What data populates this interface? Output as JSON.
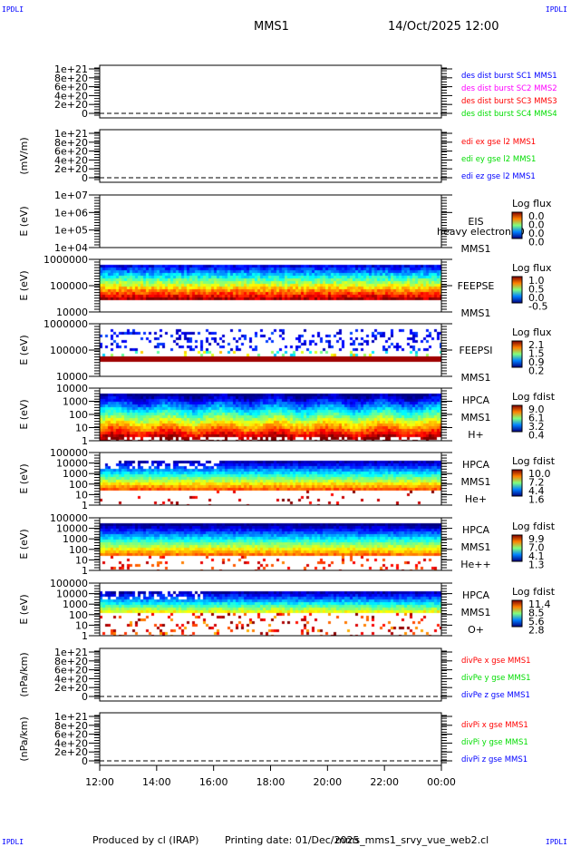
{
  "corners": {
    "tl": "IPDLI",
    "tr": "IPDLI",
    "bl": "IPDLI",
    "br": "IPDLI"
  },
  "header": {
    "spacecraft": "MMS1",
    "datetime": "14/Oct/2025 12:00"
  },
  "footer": {
    "produced": "Produced by cl (IRAP)",
    "printing": "Printing date: 01/Dec/2025",
    "script": "mms_mms1_srvy_vue_web2.cl"
  },
  "colors": {
    "blue": "#0000ff",
    "magenta": "#ff00ff",
    "red": "#ff0000",
    "green": "#00dd00"
  },
  "chart_data": {
    "type": "heatmap",
    "x_ticks": [
      "12:00",
      "14:00",
      "16:00",
      "18:00",
      "20:00",
      "22:00",
      "00:00"
    ],
    "panels": [
      {
        "type": "line",
        "ylabel": "",
        "yticks": [
          "1e+21",
          "8e+20",
          "6e+20",
          "4e+20",
          "2e+20",
          "0"
        ],
        "ylim": [
          0,
          1e+21
        ],
        "legend": [
          {
            "text": "des dist burst SC1 MMS1",
            "color": "#0000ff"
          },
          {
            "text": "des dist burst SC2 MMS2",
            "color": "#ff00ff"
          },
          {
            "text": "des dist burst SC3 MMS3",
            "color": "#ff0000"
          },
          {
            "text": "des dist burst SC4 MMS4",
            "color": "#00dd00"
          }
        ]
      },
      {
        "type": "line",
        "ylabel": "(mV/m)",
        "yticks": [
          "1e+21",
          "8e+20",
          "6e+20",
          "4e+20",
          "2e+20",
          "0"
        ],
        "ylim": [
          0,
          1e+21
        ],
        "legend": [
          {
            "text": "edi ex gse l2 MMS1",
            "color": "#ff0000"
          },
          {
            "text": "edi ey gse l2 MMS1",
            "color": "#00dd00"
          },
          {
            "text": "edi ez gse l2 MMS1",
            "color": "#0000ff"
          }
        ]
      },
      {
        "type": "heatmap",
        "ylabel": "E (eV)",
        "yticks": [
          "1e+07",
          "1e+06",
          "1e+05",
          "1e+04"
        ],
        "instrument": "EIS",
        "extra": "heavy electron t0",
        "sc": "MMS1",
        "species": "",
        "cbar_title": "Log flux",
        "cbar": [
          "0.0",
          "0.0",
          "0.0",
          "0.0"
        ]
      },
      {
        "type": "heatmap",
        "ylabel": "E (eV)",
        "yticks": [
          "1000000",
          "100000",
          "10000"
        ],
        "instrument": "FEEPSE",
        "sc": "MMS1",
        "species": "",
        "cbar_title": "Log flux",
        "cbar": [
          "1.0",
          "0.5",
          "0.0",
          "-0.5"
        ]
      },
      {
        "type": "heatmap",
        "ylabel": "E (eV)",
        "yticks": [
          "1000000",
          "100000",
          "10000"
        ],
        "instrument": "FEEPSI",
        "sc": "MMS1",
        "species": "",
        "cbar_title": "Log flux",
        "cbar": [
          "2.1",
          "1.5",
          "0.9",
          "0.2"
        ]
      },
      {
        "type": "heatmap",
        "ylabel": "E (eV)",
        "yticks": [
          "10000",
          "1000",
          "100",
          "10",
          "1"
        ],
        "instrument": "HPCA",
        "sc": "MMS1",
        "species": "H+",
        "cbar_title": "Log fdist",
        "cbar": [
          "9.0",
          "6.1",
          "3.2",
          "0.4"
        ]
      },
      {
        "type": "heatmap",
        "ylabel": "E (eV)",
        "yticks": [
          "100000",
          "10000",
          "1000",
          "100",
          "10",
          "1"
        ],
        "instrument": "HPCA",
        "sc": "MMS1",
        "species": "He+",
        "cbar_title": "Log fdist",
        "cbar": [
          "10.0",
          "7.2",
          "4.4",
          "1.6"
        ]
      },
      {
        "type": "heatmap",
        "ylabel": "E (eV)",
        "yticks": [
          "100000",
          "10000",
          "1000",
          "100",
          "10",
          "1"
        ],
        "instrument": "HPCA",
        "sc": "MMS1",
        "species": "He++",
        "cbar_title": "Log fdist",
        "cbar": [
          "9.9",
          "7.0",
          "4.1",
          "1.3"
        ]
      },
      {
        "type": "heatmap",
        "ylabel": "E (eV)",
        "yticks": [
          "100000",
          "10000",
          "1000",
          "100",
          "10",
          "1"
        ],
        "instrument": "HPCA",
        "sc": "MMS1",
        "species": "O+",
        "cbar_title": "Log fdist",
        "cbar": [
          "11.4",
          "8.5",
          "5.6",
          "2.8"
        ]
      },
      {
        "type": "line",
        "ylabel": "(nPa/km)",
        "yticks": [
          "1e+21",
          "8e+20",
          "6e+20",
          "4e+20",
          "2e+20",
          "0"
        ],
        "ylim": [
          0,
          1e+21
        ],
        "legend": [
          {
            "text": "divPe x gse MMS1",
            "color": "#ff0000"
          },
          {
            "text": "divPe y gse MMS1",
            "color": "#00dd00"
          },
          {
            "text": "divPe z gse MMS1",
            "color": "#0000ff"
          }
        ]
      },
      {
        "type": "line",
        "ylabel": "(nPa/km)",
        "yticks": [
          "1e+21",
          "8e+20",
          "6e+20",
          "4e+20",
          "2e+20",
          "0"
        ],
        "ylim": [
          0,
          1e+21
        ],
        "legend": [
          {
            "text": "divPi x gse MMS1",
            "color": "#ff0000"
          },
          {
            "text": "divPi y gse MMS1",
            "color": "#00dd00"
          },
          {
            "text": "divPi z gse MMS1",
            "color": "#0000ff"
          }
        ]
      }
    ]
  }
}
